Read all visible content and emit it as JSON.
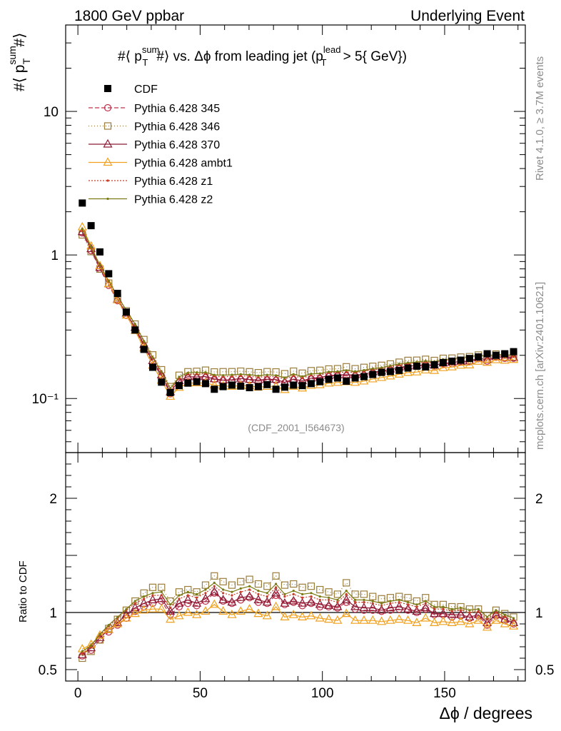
{
  "header": {
    "left": "1800 GeV ppbar",
    "right": "Underlying Event"
  },
  "side_labels": {
    "rivet": "Rivet 4.1.0, ≥ 3.7M events",
    "mcplots": "mcplots.cern.ch [arXiv:2401.10621]"
  },
  "chart_data": {
    "type": "scatter",
    "title": "#⟨ p_T^sum #⟩ vs. Δϕ from leading jet  (p_T^lead > 5{ GeV})",
    "title_parts": {
      "prefix": "#⟨ p",
      "sub": "T",
      "sup": "sum",
      "mid": "#⟩ vs. Δϕ from leading jet  (p",
      "sub2": "T",
      "sup2": "lead",
      "suffix": " > 5{ GeV})"
    },
    "ylabel_parts": {
      "prefix": "#⟨ p",
      "sub": "T",
      "sup": "sum",
      "suffix": "#⟩"
    },
    "xlabel": "Δϕ / degrees",
    "ratio_ylabel": "Ratio to CDF",
    "watermark": "(CDF_2001_I564673)",
    "xlim": [
      -5,
      183
    ],
    "ylim": [
      0.042,
      40
    ],
    "yscale": "log",
    "ratio_ylim": [
      0.4,
      2.4
    ],
    "xticks": [
      0,
      50,
      100,
      150
    ],
    "yticks_main": [
      {
        "v": 0.1,
        "label": "10⁻¹"
      },
      {
        "v": 1,
        "label": "1"
      },
      {
        "v": 10,
        "label": "10"
      }
    ],
    "yticks_ratio": [
      {
        "v": 0.5,
        "label": "0.5"
      },
      {
        "v": 1,
        "label": "1"
      },
      {
        "v": 2,
        "label": "2"
      }
    ],
    "x": [
      1.8,
      5.4,
      9.0,
      12.6,
      16.2,
      19.8,
      23.4,
      27.0,
      30.6,
      34.2,
      37.8,
      41.4,
      45.0,
      48.6,
      52.2,
      55.8,
      59.4,
      63.0,
      66.6,
      70.2,
      73.8,
      77.4,
      81.0,
      84.6,
      88.2,
      91.8,
      95.4,
      99.0,
      102.6,
      106.2,
      109.8,
      113.4,
      117.0,
      120.6,
      124.2,
      127.8,
      131.4,
      135.0,
      138.6,
      142.2,
      145.8,
      149.4,
      153.0,
      156.6,
      160.2,
      163.8,
      167.4,
      171.0,
      174.6,
      178.2
    ],
    "cdf": [
      2.3,
      1.6,
      1.05,
      0.74,
      0.54,
      0.4,
      0.3,
      0.22,
      0.165,
      0.13,
      0.11,
      0.123,
      0.128,
      0.131,
      0.127,
      0.116,
      0.121,
      0.124,
      0.122,
      0.119,
      0.121,
      0.125,
      0.116,
      0.12,
      0.124,
      0.123,
      0.127,
      0.131,
      0.136,
      0.139,
      0.132,
      0.139,
      0.142,
      0.147,
      0.152,
      0.154,
      0.157,
      0.163,
      0.168,
      0.166,
      0.172,
      0.178,
      0.182,
      0.185,
      0.19,
      0.195,
      0.205,
      0.2,
      0.205,
      0.212
    ],
    "series": [
      {
        "name": "Pythia 6.428 345",
        "color": "#c0304a",
        "dash": "6,3",
        "marker": "circle-open",
        "ratio": [
          0.62,
          0.67,
          0.76,
          0.83,
          0.89,
          0.95,
          1.01,
          1.05,
          1.08,
          1.1,
          0.98,
          1.05,
          1.08,
          1.06,
          1.1,
          1.17,
          1.1,
          1.08,
          1.11,
          1.13,
          1.09,
          1.08,
          1.15,
          1.07,
          1.09,
          1.06,
          1.08,
          1.05,
          1.05,
          1.04,
          1.09,
          1.03,
          1.02,
          1.02,
          1.01,
          1.02,
          1.03,
          1.02,
          1.0,
          1.03,
          0.98,
          0.98,
          0.96,
          0.97,
          0.95,
          0.97,
          0.89,
          0.97,
          0.93,
          0.9
        ]
      },
      {
        "name": "Pythia 6.428 346",
        "color": "#9b7d3a",
        "dash": "1,3",
        "marker": "square-open",
        "ratio": [
          0.6,
          0.66,
          0.76,
          0.86,
          0.94,
          1.02,
          1.1,
          1.17,
          1.22,
          1.22,
          1.1,
          1.18,
          1.2,
          1.18,
          1.24,
          1.32,
          1.27,
          1.24,
          1.27,
          1.29,
          1.25,
          1.23,
          1.32,
          1.24,
          1.25,
          1.22,
          1.23,
          1.2,
          1.18,
          1.16,
          1.26,
          1.16,
          1.16,
          1.14,
          1.12,
          1.13,
          1.14,
          1.13,
          1.1,
          1.13,
          1.07,
          1.07,
          1.05,
          1.05,
          1.03,
          1.03,
          0.97,
          1.02,
          0.99,
          0.96
        ]
      },
      {
        "name": "Pythia 6.428 370",
        "color": "#8b1a34",
        "dash": "",
        "marker": "triangle-open",
        "ratio": [
          0.63,
          0.69,
          0.78,
          0.85,
          0.91,
          0.98,
          1.04,
          1.08,
          1.11,
          1.12,
          1.01,
          1.08,
          1.11,
          1.08,
          1.12,
          1.18,
          1.11,
          1.09,
          1.13,
          1.14,
          1.11,
          1.09,
          1.17,
          1.08,
          1.1,
          1.08,
          1.09,
          1.07,
          1.06,
          1.05,
          1.11,
          1.05,
          1.04,
          1.04,
          1.02,
          1.04,
          1.05,
          1.03,
          1.01,
          1.04,
          0.99,
          0.99,
          0.98,
          0.98,
          0.96,
          0.98,
          0.91,
          0.98,
          0.94,
          0.91
        ]
      },
      {
        "name": "Pythia 6.428 ambt1",
        "color": "#f0a01e",
        "dash": "",
        "marker": "triangle-open",
        "ratio": [
          0.68,
          0.72,
          0.8,
          0.85,
          0.9,
          0.95,
          0.99,
          1.02,
          1.03,
          1.03,
          0.94,
          0.97,
          1.0,
          0.98,
          1.01,
          1.07,
          1.01,
          0.98,
          1.01,
          1.03,
          0.99,
          0.97,
          1.05,
          0.96,
          0.98,
          0.96,
          0.97,
          0.95,
          0.94,
          0.93,
          0.99,
          0.93,
          0.93,
          0.93,
          0.92,
          0.93,
          0.94,
          0.93,
          0.91,
          0.95,
          0.91,
          0.92,
          0.91,
          0.92,
          0.9,
          0.93,
          0.87,
          0.93,
          0.9,
          0.88
        ]
      },
      {
        "name": "Pythia 6.428 z1",
        "color": "#c83c28",
        "dash": "2,2",
        "marker": "dot",
        "ratio": [
          0.64,
          0.7,
          0.8,
          0.88,
          0.95,
          1.02,
          1.08,
          1.12,
          1.15,
          1.15,
          1.04,
          1.12,
          1.15,
          1.13,
          1.17,
          1.23,
          1.17,
          1.15,
          1.18,
          1.2,
          1.16,
          1.14,
          1.22,
          1.14,
          1.16,
          1.13,
          1.14,
          1.11,
          1.11,
          1.09,
          1.16,
          1.09,
          1.09,
          1.08,
          1.06,
          1.08,
          1.09,
          1.07,
          1.05,
          1.08,
          1.03,
          1.03,
          1.01,
          1.02,
          1.0,
          1.01,
          0.94,
          1.0,
          0.96,
          0.93
        ]
      },
      {
        "name": "Pythia 6.428 z2",
        "color": "#7a7a14",
        "dash": "",
        "marker": "dot",
        "ratio": [
          0.66,
          0.71,
          0.81,
          0.89,
          0.96,
          1.03,
          1.1,
          1.14,
          1.17,
          1.18,
          1.07,
          1.15,
          1.18,
          1.16,
          1.2,
          1.26,
          1.2,
          1.18,
          1.21,
          1.23,
          1.19,
          1.17,
          1.25,
          1.16,
          1.19,
          1.16,
          1.17,
          1.14,
          1.13,
          1.11,
          1.19,
          1.11,
          1.11,
          1.1,
          1.08,
          1.1,
          1.11,
          1.09,
          1.07,
          1.1,
          1.05,
          1.05,
          1.03,
          1.04,
          1.02,
          1.03,
          0.96,
          1.02,
          0.98,
          0.95
        ]
      }
    ],
    "legend_placement": "top-left",
    "cdf_label": "CDF"
  }
}
